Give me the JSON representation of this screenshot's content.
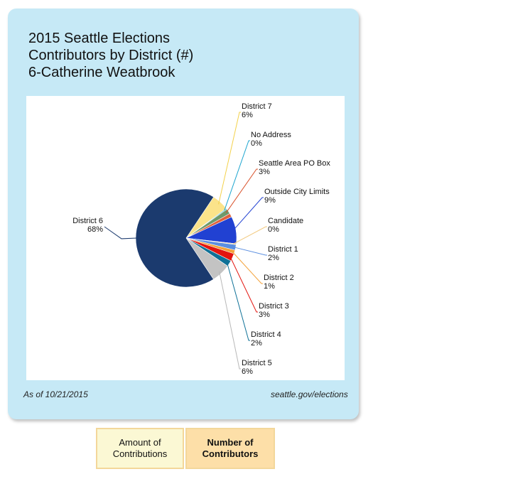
{
  "title_lines": [
    "2015 Seattle Elections",
    "Contributors by District (#)",
    "6-Catherine Weatbrook"
  ],
  "footer": {
    "as_of": "As of 10/21/2015",
    "source": "seattle.gov/elections"
  },
  "tabs": {
    "amount": [
      "Amount of",
      "Contributions"
    ],
    "number": [
      "Number of",
      "Contributors"
    ]
  },
  "chart_data": {
    "type": "pie",
    "title": "2015 Seattle Elections Contributors by District (#) 6-Catherine Weatbrook",
    "slices": [
      {
        "name": "District 7",
        "label": "6%",
        "value": 5.5,
        "color": "#fbe38a"
      },
      {
        "name": "No Address",
        "label": "0%",
        "value": 0.3,
        "color": "#1da5cf"
      },
      {
        "name": "Seattle Area PO Box",
        "label": "3%",
        "value": 1.7,
        "color": "#6f9a6a"
      },
      {
        "name": "Seattle Area PO Box (2)",
        "label": "",
        "value": 1.2,
        "color": "#e0623c"
      },
      {
        "name": "Outside City Limits",
        "label": "9%",
        "value": 9,
        "color": "#2141d2"
      },
      {
        "name": "Candidate",
        "label": "0%",
        "value": 0.3,
        "color": "#f2c97e"
      },
      {
        "name": "District 1",
        "label": "2%",
        "value": 1.8,
        "color": "#5b8fe0"
      },
      {
        "name": "District 2",
        "label": "1%",
        "value": 1.2,
        "color": "#f4a23a"
      },
      {
        "name": "District 3",
        "label": "3%",
        "value": 2.5,
        "color": "#e3150f"
      },
      {
        "name": "District 4",
        "label": "2%",
        "value": 2.0,
        "color": "#0f7197"
      },
      {
        "name": "District 5",
        "label": "6%",
        "value": 6.2,
        "color": "#c3c3c3"
      },
      {
        "name": "District 6",
        "label": "68%",
        "value": 68.3,
        "color": "#1b3a6e"
      }
    ],
    "leader_colors": {
      "District 7": "#f3d14a",
      "No Address": "#1da5cf",
      "Seattle Area PO Box": "#d9522b",
      "Outside City Limits": "#2141d2",
      "Candidate": "#f2c97e",
      "District 1": "#5b8fe0",
      "District 2": "#f4a23a",
      "District 3": "#e3150f",
      "District 4": "#0f7197",
      "District 5": "#b8b8b8",
      "District 6": "#1b3a6e"
    }
  }
}
